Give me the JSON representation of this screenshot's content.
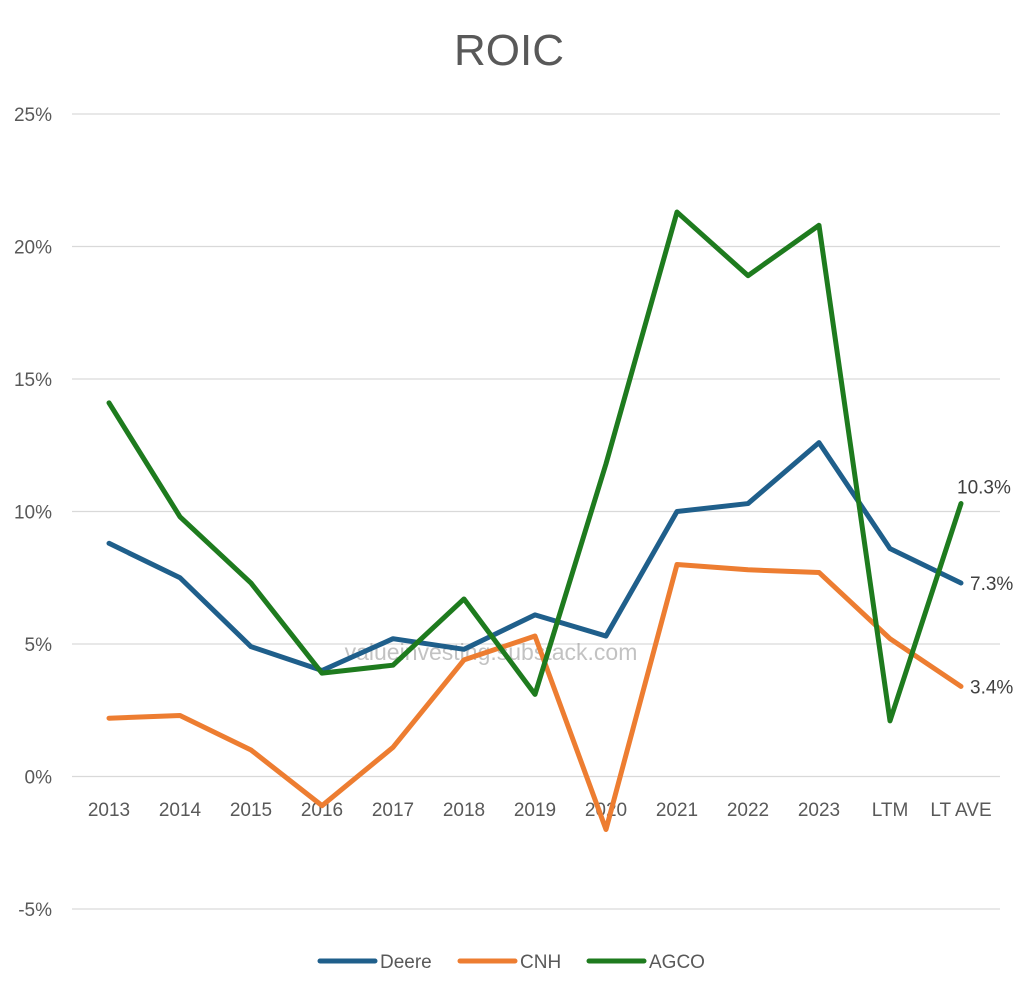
{
  "chart_data": {
    "type": "line",
    "title": "ROIC",
    "xlabel": "",
    "ylabel": "",
    "categories": [
      "2013",
      "2014",
      "2015",
      "2016",
      "2017",
      "2018",
      "2019",
      "2020",
      "2021",
      "2022",
      "2023",
      "LTM",
      "LT AVE"
    ],
    "ylim": [
      -5,
      25
    ],
    "yticks": [
      -5,
      0,
      5,
      10,
      15,
      20,
      25
    ],
    "ytick_labels": [
      "-5%",
      "0%",
      "5%",
      "10%",
      "15%",
      "20%",
      "25%"
    ],
    "grid": true,
    "legend_position": "bottom",
    "series": [
      {
        "name": "Deere",
        "color": "#1f5f8b",
        "values": [
          8.8,
          7.5,
          4.9,
          4.0,
          5.2,
          4.8,
          6.1,
          5.3,
          10.0,
          10.3,
          12.6,
          8.6,
          7.3
        ],
        "end_label": "7.3%"
      },
      {
        "name": "CNH",
        "color": "#ed7d31",
        "values": [
          2.2,
          2.3,
          1.0,
          -1.1,
          1.1,
          4.4,
          5.3,
          -2.0,
          8.0,
          7.8,
          7.7,
          5.2,
          3.4
        ],
        "end_label": "3.4%"
      },
      {
        "name": "AGCO",
        "color": "#1e7b1e",
        "values": [
          14.1,
          9.8,
          7.3,
          3.9,
          4.2,
          6.7,
          3.1,
          11.8,
          21.3,
          18.9,
          20.8,
          2.1,
          10.3
        ],
        "end_label": "10.3%"
      }
    ],
    "watermark": "valueinvesting.substack.com"
  }
}
